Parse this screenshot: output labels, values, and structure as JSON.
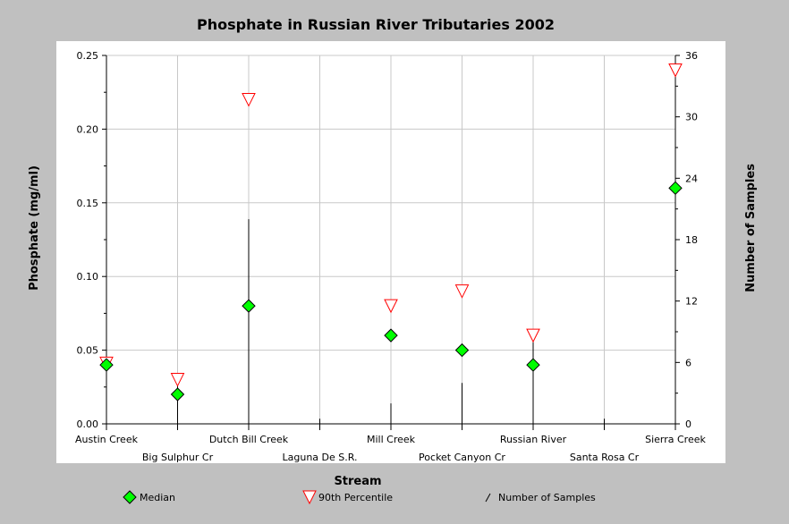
{
  "chart_data": {
    "type": "scatter",
    "title": "Phosphate in Russian River Tributaries 2002",
    "xlabel": "Stream",
    "ylabel": "Phosphate (mg/ml)",
    "y2label": "Number of Samples",
    "categories": [
      "Austin Creek",
      "Big Sulphur Cr",
      "Dutch Bill Creek",
      "Laguna De S.R.",
      "Mill Creek",
      "Pocket Canyon Cr",
      "Russian River",
      "Santa Rosa Cr",
      "Sierra Creek"
    ],
    "ylim": [
      0,
      0.25
    ],
    "yticks": [
      "0.00",
      "0.05",
      "0.10",
      "0.15",
      "0.20",
      "0.25"
    ],
    "y2lim": [
      0,
      36
    ],
    "y2ticks": [
      "0",
      "6",
      "12",
      "18",
      "24",
      "30",
      "36"
    ],
    "grid": true,
    "legend_position": "bottom",
    "series": [
      {
        "name": "Median",
        "axis": "left",
        "marker": "diamond",
        "color": "#00ff00",
        "values": [
          0.04,
          0.02,
          0.08,
          null,
          0.06,
          0.05,
          0.04,
          null,
          0.16
        ]
      },
      {
        "name": "90th Percentile",
        "axis": "left",
        "marker": "triangle-down",
        "color": "#ff0000",
        "values": [
          0.041,
          0.03,
          0.22,
          null,
          0.08,
          0.09,
          0.06,
          null,
          0.24
        ]
      },
      {
        "name": "Number of Samples",
        "axis": "right",
        "marker": "line",
        "color": "#000000",
        "values": [
          6,
          4,
          20,
          0.5,
          2,
          4,
          8,
          0.5,
          36
        ]
      }
    ]
  }
}
